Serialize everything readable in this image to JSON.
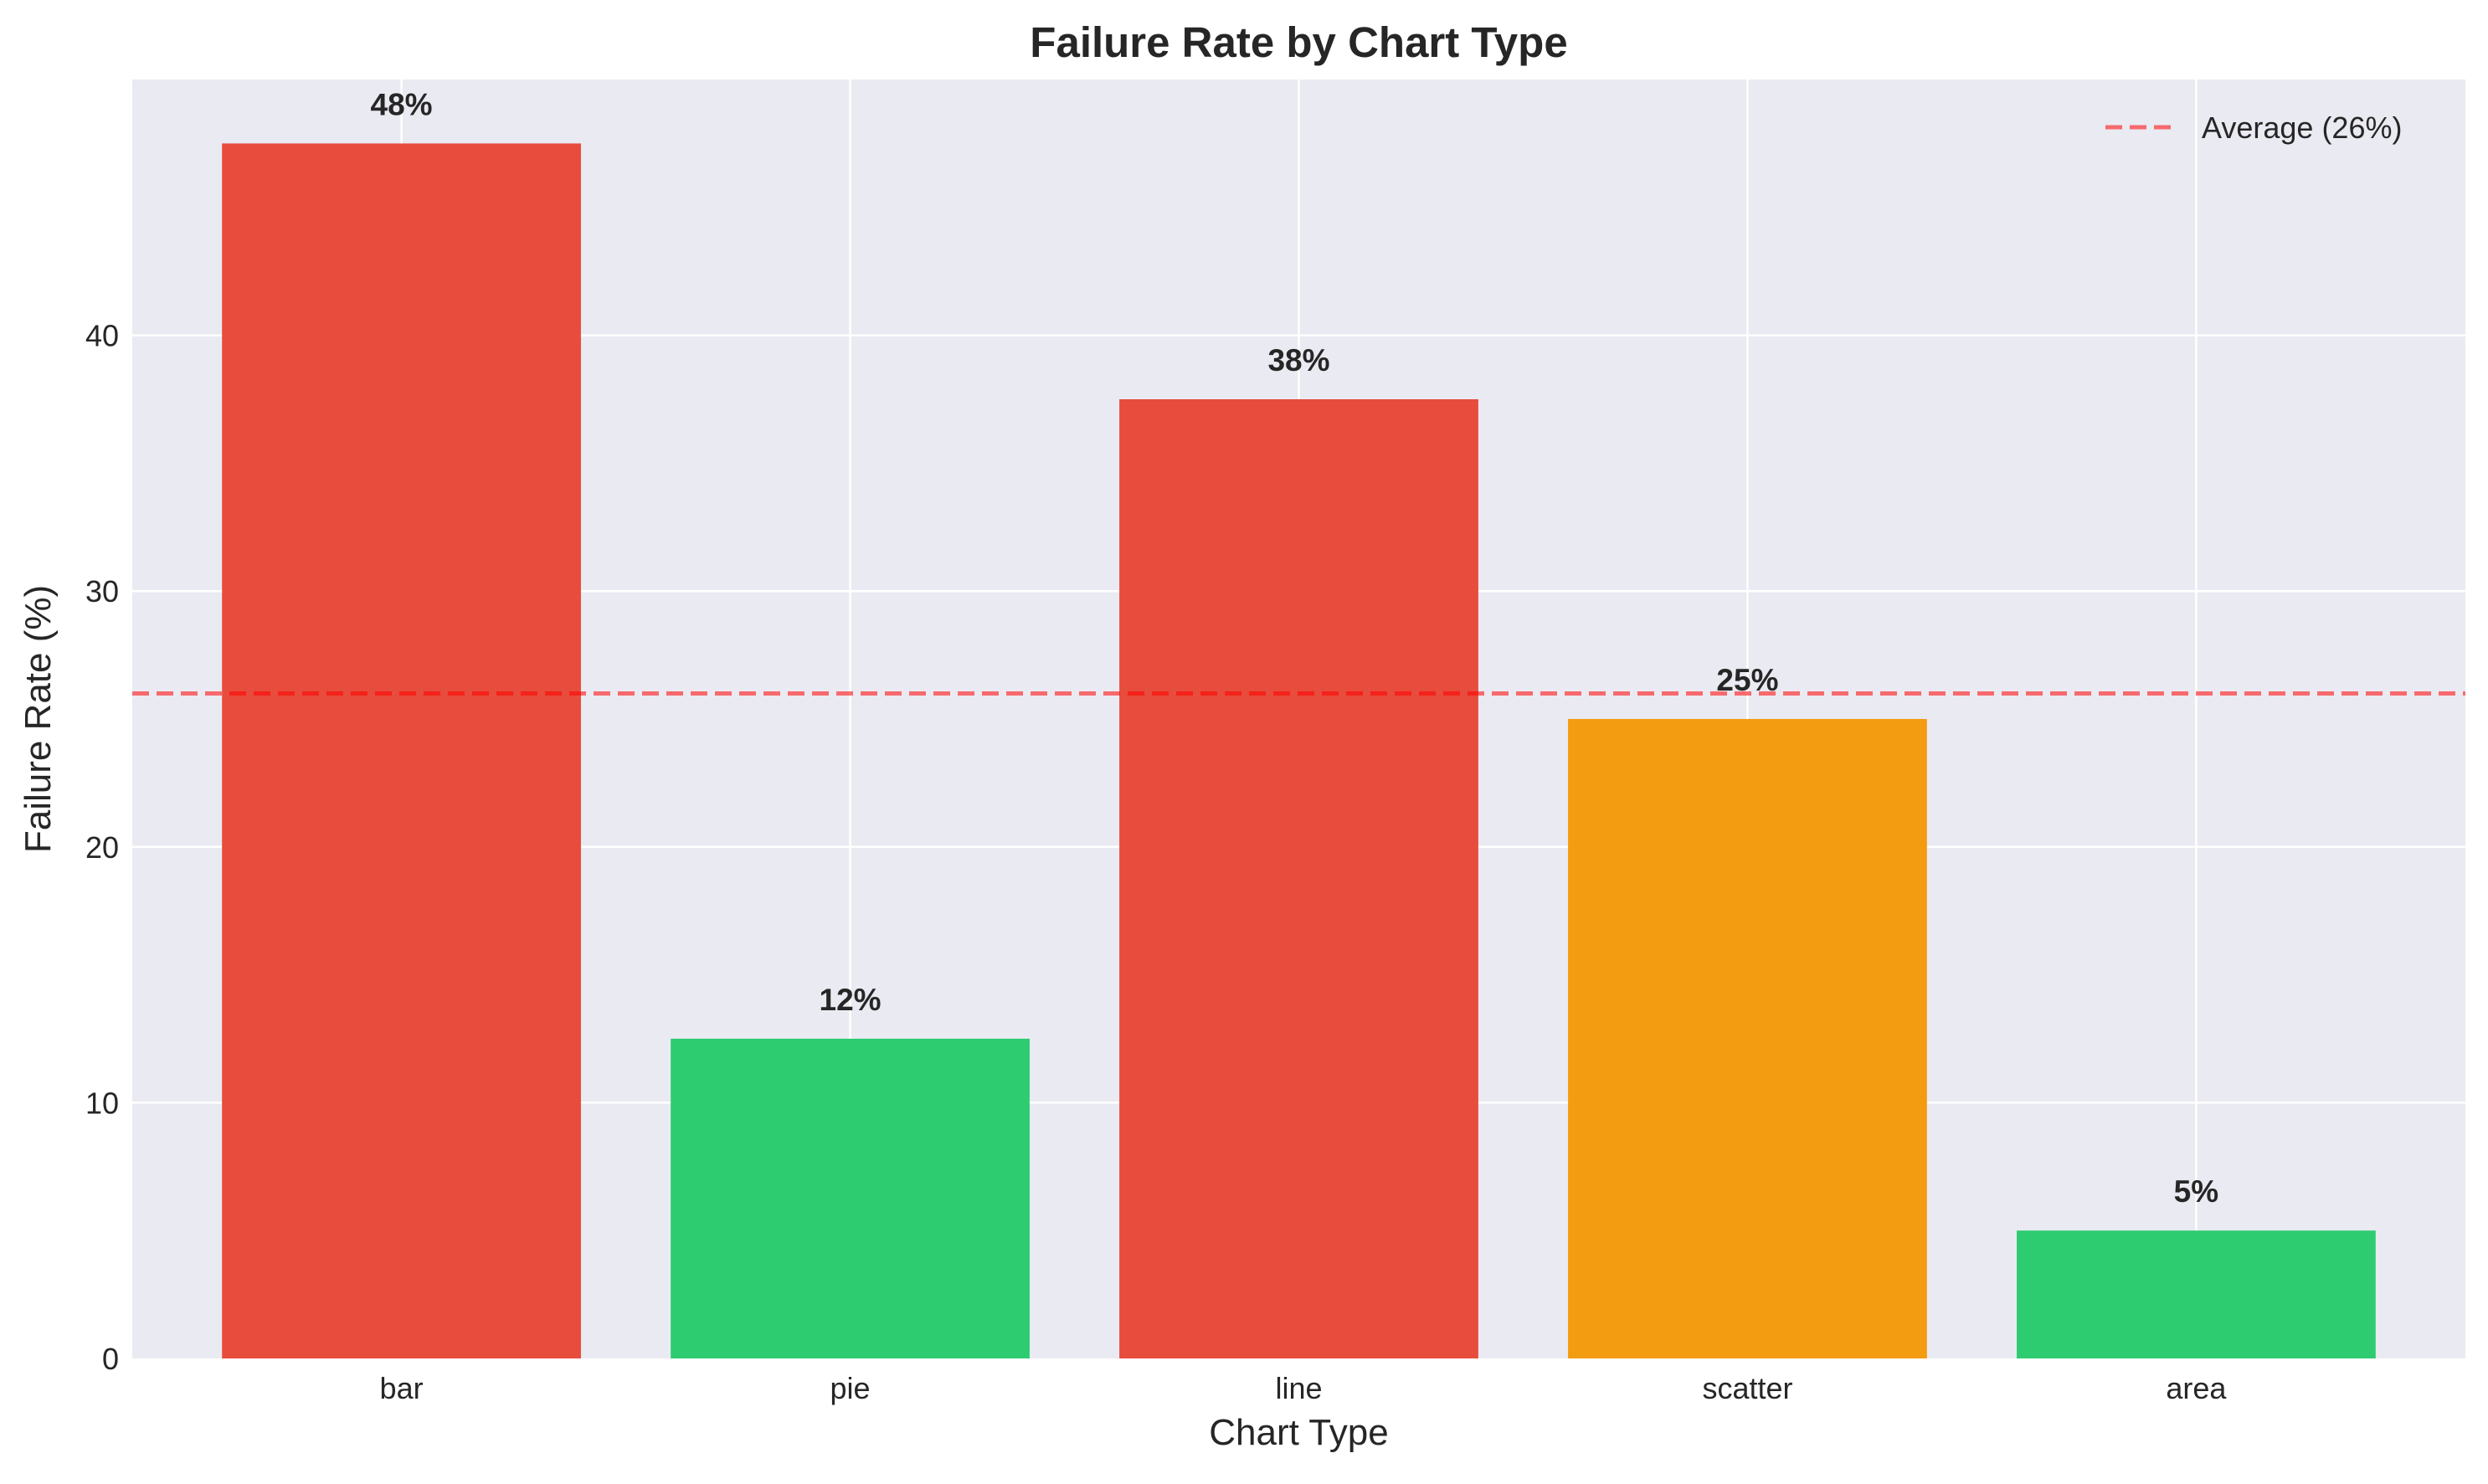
{
  "chart_data": {
    "type": "bar",
    "title": "Failure Rate by Chart Type",
    "xlabel": "Chart Type",
    "ylabel": "Failure Rate (%)",
    "categories": [
      "bar",
      "pie",
      "line",
      "scatter",
      "area"
    ],
    "values": [
      47.5,
      12.5,
      37.5,
      25,
      5
    ],
    "data_labels": [
      "48%",
      "12%",
      "38%",
      "25%",
      "5%"
    ],
    "bar_colors": [
      "#e74c3c",
      "#2ecc71",
      "#e74c3c",
      "#f39c12",
      "#2ecc71"
    ],
    "ylim": [
      0,
      50
    ],
    "yticks": [
      0,
      10,
      20,
      30,
      40
    ],
    "grid": true,
    "reference_line": {
      "value": 26,
      "label": "Average (26%)",
      "style": "dashed",
      "color": "#ff0000"
    },
    "legend_position": "top-right",
    "background_color": "#eaeaf2"
  }
}
